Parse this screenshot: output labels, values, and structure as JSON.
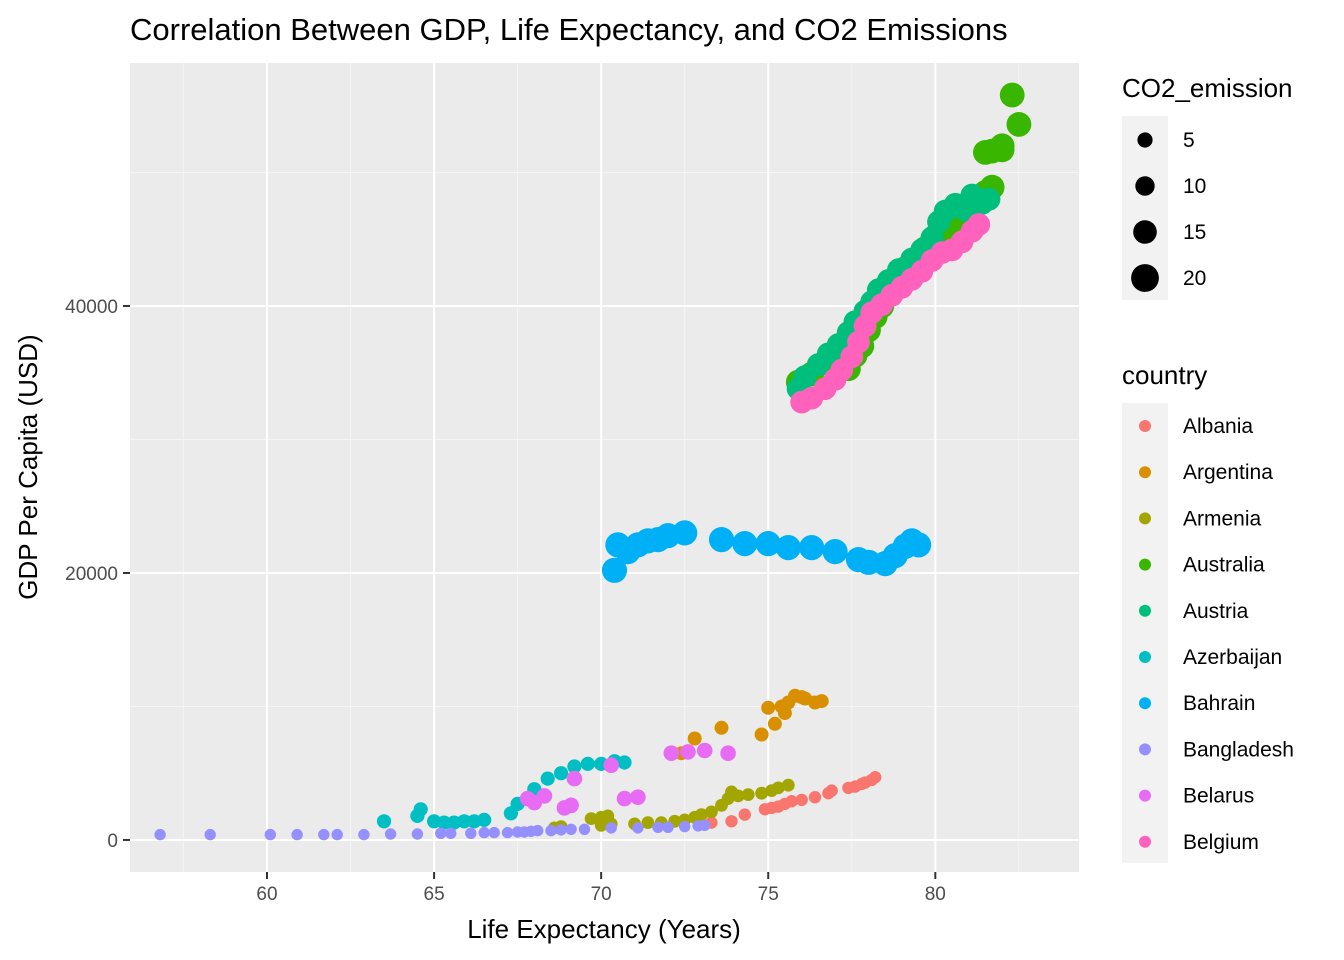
{
  "chart_data": {
    "type": "scatter",
    "title": "Correlation Between GDP, Life Expectancy, and CO2 Emissions",
    "xlabel": "Life Expectancy (Years)",
    "ylabel": "GDP Per Capita (USD)",
    "xlim": [
      55.9,
      84.3
    ],
    "ylim": [
      -2400,
      58200
    ],
    "x_ticks": [
      60,
      65,
      70,
      75,
      80
    ],
    "y_ticks": [
      0,
      20000,
      40000
    ],
    "x_tick_labels": [
      "60",
      "65",
      "70",
      "75",
      "80"
    ],
    "y_tick_labels": [
      "0",
      "20000",
      "40000"
    ],
    "grid": true,
    "size_legend": {
      "title": "CO2_emission",
      "values": [
        5,
        10,
        15,
        20
      ],
      "labels": [
        "5",
        "10",
        "15",
        "20"
      ]
    },
    "color_legend": {
      "title": "country",
      "position": "right"
    },
    "series": [
      {
        "name": "Albania",
        "color": "#F8766D",
        "size": 1.6,
        "points": [
          [
            73.3,
            1300
          ],
          [
            73.9,
            1400
          ],
          [
            74.3,
            1900
          ],
          [
            74.9,
            2300
          ],
          [
            75.1,
            2400
          ],
          [
            75.3,
            2500
          ],
          [
            75.5,
            2700
          ],
          [
            75.7,
            2900
          ],
          [
            76.0,
            3000
          ],
          [
            76.4,
            3200
          ],
          [
            76.8,
            3500
          ],
          [
            76.9,
            3700
          ],
          [
            77.4,
            3900
          ],
          [
            77.6,
            4000
          ],
          [
            77.8,
            4200
          ],
          [
            77.9,
            4300
          ],
          [
            78.1,
            4500
          ],
          [
            78.2,
            4700
          ]
        ]
      },
      {
        "name": "Argentina",
        "color": "#D89000",
        "size": 3.6,
        "points": [
          [
            72.4,
            6500
          ],
          [
            72.8,
            7600
          ],
          [
            73.6,
            8400
          ],
          [
            74.8,
            7900
          ],
          [
            75.0,
            9900
          ],
          [
            75.2,
            8700
          ],
          [
            75.4,
            10000
          ],
          [
            75.5,
            9500
          ],
          [
            75.6,
            10300
          ],
          [
            75.8,
            10800
          ],
          [
            76.0,
            10700
          ],
          [
            76.1,
            10600
          ],
          [
            76.4,
            10300
          ],
          [
            76.6,
            10400
          ]
        ]
      },
      {
        "name": "Armenia",
        "color": "#A3A500",
        "size": 2.2,
        "points": [
          [
            68.6,
            900
          ],
          [
            68.8,
            1000
          ],
          [
            69.7,
            1600
          ],
          [
            70.0,
            1700
          ],
          [
            70.2,
            1800
          ],
          [
            70.0,
            1100
          ],
          [
            70.3,
            1200
          ],
          [
            71.0,
            1200
          ],
          [
            71.4,
            1300
          ],
          [
            71.8,
            1300
          ],
          [
            72.2,
            1400
          ],
          [
            72.5,
            1500
          ],
          [
            72.8,
            1700
          ],
          [
            73.0,
            1900
          ],
          [
            73.3,
            2100
          ],
          [
            73.6,
            2600
          ],
          [
            73.8,
            3100
          ],
          [
            73.9,
            3600
          ],
          [
            74.1,
            3300
          ],
          [
            74.4,
            3400
          ],
          [
            74.8,
            3500
          ],
          [
            75.1,
            3700
          ],
          [
            75.3,
            3900
          ],
          [
            75.6,
            4100
          ]
        ]
      },
      {
        "name": "Australia",
        "color": "#39B600",
        "size": 16.5,
        "points": [
          [
            75.9,
            34300
          ],
          [
            76.3,
            34900
          ],
          [
            76.8,
            35700
          ],
          [
            77.2,
            36000
          ],
          [
            77.4,
            35300
          ],
          [
            77.6,
            36300
          ],
          [
            77.8,
            37000
          ],
          [
            78.0,
            38200
          ],
          [
            78.2,
            39200
          ],
          [
            78.4,
            40000
          ],
          [
            78.6,
            41200
          ],
          [
            78.8,
            42000
          ],
          [
            79.1,
            42800
          ],
          [
            79.4,
            43500
          ],
          [
            79.7,
            44300
          ],
          [
            80.0,
            45200
          ],
          [
            80.3,
            45800
          ],
          [
            80.6,
            46500
          ],
          [
            80.9,
            47300
          ],
          [
            81.2,
            48100
          ],
          [
            81.5,
            48500
          ],
          [
            81.7,
            48900
          ],
          [
            81.5,
            51500
          ],
          [
            81.7,
            51600
          ],
          [
            82.0,
            52000
          ],
          [
            82.0,
            51700
          ],
          [
            82.5,
            53600
          ],
          [
            82.3,
            55800
          ]
        ]
      },
      {
        "name": "Austria",
        "color": "#00BF7D",
        "size": 14.5,
        "points": [
          [
            75.9,
            33800
          ],
          [
            76.1,
            34700
          ],
          [
            76.5,
            35600
          ],
          [
            76.8,
            36400
          ],
          [
            77.1,
            37100
          ],
          [
            77.4,
            38000
          ],
          [
            77.6,
            38800
          ],
          [
            77.9,
            39600
          ],
          [
            78.1,
            40300
          ],
          [
            78.3,
            41200
          ],
          [
            78.6,
            41900
          ],
          [
            78.9,
            42700
          ],
          [
            79.3,
            43500
          ],
          [
            79.6,
            44200
          ],
          [
            79.9,
            45100
          ],
          [
            80.1,
            46300
          ],
          [
            80.3,
            47100
          ],
          [
            80.6,
            47600
          ],
          [
            80.9,
            47200
          ],
          [
            81.1,
            48300
          ],
          [
            81.4,
            47700
          ],
          [
            81.6,
            48000
          ]
        ]
      },
      {
        "name": "Azerbaijan",
        "color": "#00BFC4",
        "size": 3.8,
        "points": [
          [
            63.5,
            1400
          ],
          [
            64.5,
            1800
          ],
          [
            64.6,
            2300
          ],
          [
            65.0,
            1400
          ],
          [
            65.3,
            1300
          ],
          [
            65.6,
            1300
          ],
          [
            65.9,
            1400
          ],
          [
            66.2,
            1400
          ],
          [
            66.5,
            1500
          ],
          [
            67.3,
            2000
          ],
          [
            67.5,
            2700
          ],
          [
            68.0,
            3800
          ],
          [
            68.4,
            4600
          ],
          [
            68.8,
            5000
          ],
          [
            69.2,
            5500
          ],
          [
            69.6,
            5700
          ],
          [
            70.0,
            5700
          ],
          [
            70.4,
            5900
          ],
          [
            70.7,
            5800
          ]
        ]
      },
      {
        "name": "Bahrain",
        "color": "#00B0F6",
        "size": 17.0,
        "points": [
          [
            70.4,
            20200
          ],
          [
            70.5,
            22100
          ],
          [
            70.8,
            21600
          ],
          [
            71.1,
            22100
          ],
          [
            71.4,
            22400
          ],
          [
            71.7,
            22500
          ],
          [
            72.0,
            22800
          ],
          [
            72.5,
            23000
          ],
          [
            73.6,
            22500
          ],
          [
            74.3,
            22200
          ],
          [
            75.0,
            22200
          ],
          [
            75.6,
            21900
          ],
          [
            76.3,
            21900
          ],
          [
            77.0,
            21600
          ],
          [
            77.7,
            21000
          ],
          [
            78.0,
            20800
          ],
          [
            78.5,
            20700
          ],
          [
            78.8,
            21300
          ],
          [
            79.1,
            22000
          ],
          [
            79.3,
            22400
          ],
          [
            79.5,
            22100
          ]
        ]
      },
      {
        "name": "Bangladesh",
        "color": "#9590FF",
        "size": 0.5,
        "points": [
          [
            56.8,
            400
          ],
          [
            58.3,
            400
          ],
          [
            60.1,
            400
          ],
          [
            60.9,
            400
          ],
          [
            61.7,
            400
          ],
          [
            62.1,
            400
          ],
          [
            62.9,
            400
          ],
          [
            63.7,
            450
          ],
          [
            64.5,
            450
          ],
          [
            65.2,
            500
          ],
          [
            65.5,
            500
          ],
          [
            66.1,
            500
          ],
          [
            66.5,
            550
          ],
          [
            66.8,
            550
          ],
          [
            67.2,
            550
          ],
          [
            67.5,
            600
          ],
          [
            67.7,
            600
          ],
          [
            67.9,
            650
          ],
          [
            68.1,
            700
          ],
          [
            68.5,
            700
          ],
          [
            68.8,
            750
          ],
          [
            69.1,
            800
          ],
          [
            69.5,
            800
          ],
          [
            70.3,
            900
          ],
          [
            71.1,
            900
          ],
          [
            71.7,
            950
          ],
          [
            72.0,
            950
          ],
          [
            72.5,
            1000
          ],
          [
            72.9,
            1050
          ],
          [
            73.1,
            1100
          ]
        ]
      },
      {
        "name": "Belarus",
        "color": "#E76BF3",
        "size": 5.5,
        "points": [
          [
            67.8,
            3100
          ],
          [
            68.0,
            2800
          ],
          [
            68.3,
            3300
          ],
          [
            68.9,
            2400
          ],
          [
            69.1,
            2600
          ],
          [
            69.2,
            4600
          ],
          [
            70.3,
            5600
          ],
          [
            70.7,
            3100
          ],
          [
            71.1,
            3200
          ],
          [
            72.1,
            6500
          ],
          [
            72.6,
            6600
          ],
          [
            73.1,
            6700
          ],
          [
            73.8,
            6500
          ]
        ]
      },
      {
        "name": "Belgium",
        "color": "#FF62BC",
        "size": 14.0,
        "points": [
          [
            76.0,
            32800
          ],
          [
            76.3,
            33100
          ],
          [
            76.7,
            33800
          ],
          [
            77.0,
            34500
          ],
          [
            77.2,
            35200
          ],
          [
            77.5,
            36200
          ],
          [
            77.7,
            37300
          ],
          [
            77.9,
            38500
          ],
          [
            78.1,
            39500
          ],
          [
            78.4,
            40100
          ],
          [
            78.7,
            40800
          ],
          [
            79.0,
            41400
          ],
          [
            79.3,
            42000
          ],
          [
            79.6,
            42600
          ],
          [
            79.9,
            43400
          ],
          [
            80.2,
            44000
          ],
          [
            80.5,
            44200
          ],
          [
            80.8,
            44800
          ],
          [
            81.1,
            45600
          ],
          [
            81.3,
            46100
          ]
        ]
      }
    ]
  }
}
